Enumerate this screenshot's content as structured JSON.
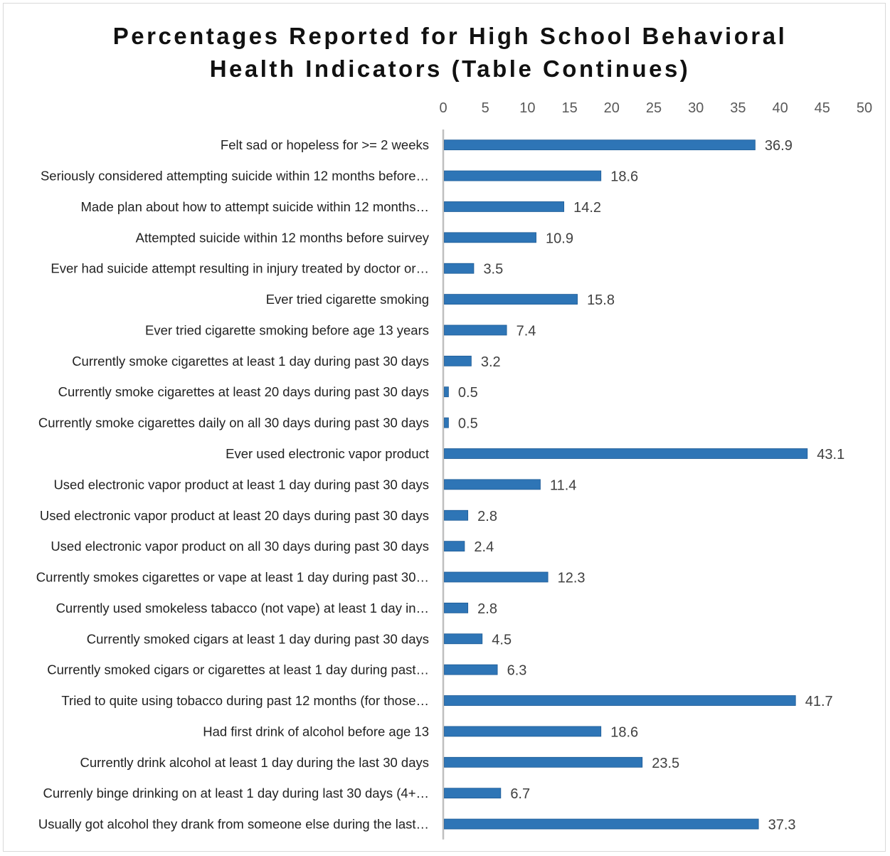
{
  "chart_data": {
    "type": "bar",
    "orientation": "horizontal",
    "title": "Percentages Reported for High School Behavioral Health Indicators (Table Continues)",
    "title_lines": [
      "Percentages Reported for High School Behavioral",
      "Health Indicators (Table Continues)"
    ],
    "xlim": [
      0,
      50
    ],
    "x_ticks": [
      "0",
      "5",
      "10",
      "15",
      "20",
      "25",
      "30",
      "35",
      "40",
      "45",
      "50"
    ],
    "axis_position": "top",
    "grid": false,
    "bar_color": "#2e75b6",
    "categories": [
      "Felt sad or hopeless for >= 2 weeks",
      "Seriously considered attempting suicide within 12 months before…",
      "Made plan about how to attempt suicide within 12 months…",
      "Attempted suicide within 12 months before suirvey",
      "Ever had suicide attempt resulting in injury treated by doctor or…",
      "Ever tried cigarette smoking",
      "Ever tried cigarette smoking before age 13 years",
      "Currently smoke cigarettes at least 1 day during past 30 days",
      "Currently smoke cigarettes at least 20 days during past 30 days",
      "Currently smoke cigarettes daily on all 30 days during past 30 days",
      "Ever used electronic vapor product",
      "Used electronic vapor product at least 1 day during past 30 days",
      "Used electronic vapor product at least 20 days during past 30 days",
      "Used electronic vapor product on all 30 days during past 30 days",
      "Currently smokes cigarettes or vape at least 1 day during past 30…",
      "Currently used smokeless tabacco (not vape) at least 1 day in…",
      "Currently smoked cigars at least 1 day during past 30 days",
      "Currently smoked cigars or cigarettes at least 1 day during past…",
      "Tried to quite using tobacco during past 12 months (for those…",
      "Had first drink of alcohol before age 13",
      "Currently drink alcohol at least 1 day during the last 30 days",
      "Currenly binge drinking on at least 1 day during last 30 days  (4+…",
      "Usually got alcohol they drank from someone else during the last…"
    ],
    "values": [
      36.9,
      18.6,
      14.2,
      10.9,
      3.5,
      15.8,
      7.4,
      3.2,
      0.5,
      0.5,
      43.1,
      11.4,
      2.8,
      2.4,
      12.3,
      2.8,
      4.5,
      6.3,
      41.7,
      18.6,
      23.5,
      6.7,
      37.3
    ],
    "data_labels": [
      "36.9",
      "18.6",
      "14.2",
      "10.9",
      "3.5",
      "15.8",
      "7.4",
      "3.2",
      "0.5",
      "0.5",
      "43.1",
      "11.4",
      "2.8",
      "2.4",
      "12.3",
      "2.8",
      "4.5",
      "6.3",
      "41.7",
      "18.6",
      "23.5",
      "6.7",
      "37.3"
    ]
  }
}
